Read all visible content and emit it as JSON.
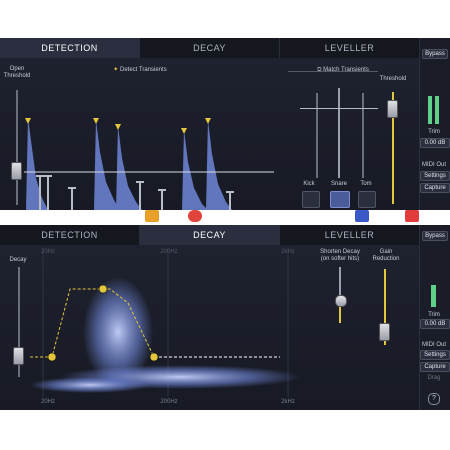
{
  "top": {
    "tabs": [
      "DETECTION",
      "DECAY",
      "LEVELLER"
    ],
    "active_tab": 0,
    "open_threshold_label": "Open Threshold",
    "detect_transients_label": "Detect Transients",
    "match_transients_label": "Match Transients",
    "threshold_label": "Threshold",
    "buttons": [
      "Kick",
      "Snare",
      "Tom"
    ],
    "sidebar": {
      "bypass": "Bypass",
      "trim_label": "Trim",
      "trim_value": "0.00 dB",
      "midi_out": "MIDI Out",
      "settings": "Settings",
      "capture": "Capture"
    }
  },
  "bottom": {
    "tabs": [
      "DETECTION",
      "DECAY",
      "LEVELLER"
    ],
    "active_tab": 1,
    "decay_label": "Decay",
    "shorten_decay_label": "Shorten Decay",
    "shorten_decay_sub": "(on softer hits)",
    "gain_reduction_label": "Gain Reduction",
    "freq_labels": [
      "20Hz",
      "200Hz",
      "2kHz"
    ],
    "sidebar": {
      "bypass": "Bypass",
      "trim_label": "Trim",
      "trim_value": "0.00 dB",
      "midi_out": "MIDI Out",
      "settings": "Settings",
      "capture": "Capture",
      "drag": "Drag",
      "help": "?"
    }
  },
  "colors": {
    "accent_yellow": "#e3c73c",
    "waveform_blue": "#6f86d8",
    "meter_green": "#5fd08a"
  }
}
